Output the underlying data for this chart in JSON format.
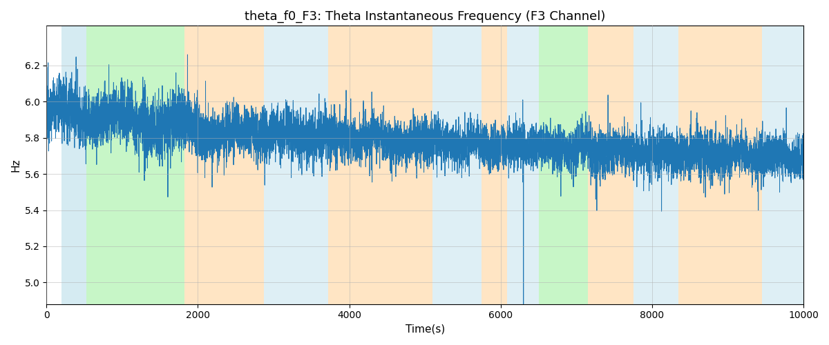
{
  "title": "theta_f0_F3: Theta Instantaneous Frequency (F3 Channel)",
  "xlabel": "Time(s)",
  "ylabel": "Hz",
  "xlim": [
    0,
    10000
  ],
  "ylim": [
    4.88,
    6.42
  ],
  "yticks": [
    5.0,
    5.2,
    5.4,
    5.6,
    5.8,
    6.0,
    6.2
  ],
  "xticks": [
    0,
    2000,
    4000,
    6000,
    8000,
    10000
  ],
  "line_color": "#1f77b4",
  "line_width": 0.7,
  "seed": 12345,
  "n_points": 10000,
  "colored_bands": [
    {
      "xmin": 200,
      "xmax": 530,
      "color": "#add8e6",
      "alpha": 0.5
    },
    {
      "xmin": 530,
      "xmax": 1820,
      "color": "#90ee90",
      "alpha": 0.5
    },
    {
      "xmin": 1820,
      "xmax": 2870,
      "color": "#ffd59e",
      "alpha": 0.6
    },
    {
      "xmin": 2870,
      "xmax": 3720,
      "color": "#add8e6",
      "alpha": 0.4
    },
    {
      "xmin": 3720,
      "xmax": 5100,
      "color": "#ffd59e",
      "alpha": 0.6
    },
    {
      "xmin": 5100,
      "xmax": 5750,
      "color": "#add8e6",
      "alpha": 0.4
    },
    {
      "xmin": 5750,
      "xmax": 6080,
      "color": "#ffd59e",
      "alpha": 0.6
    },
    {
      "xmin": 6080,
      "xmax": 6500,
      "color": "#add8e6",
      "alpha": 0.4
    },
    {
      "xmin": 6500,
      "xmax": 7150,
      "color": "#90ee90",
      "alpha": 0.5
    },
    {
      "xmin": 7150,
      "xmax": 7750,
      "color": "#ffd59e",
      "alpha": 0.6
    },
    {
      "xmin": 7750,
      "xmax": 8350,
      "color": "#add8e6",
      "alpha": 0.4
    },
    {
      "xmin": 8350,
      "xmax": 9450,
      "color": "#ffd59e",
      "alpha": 0.6
    },
    {
      "xmin": 9450,
      "xmax": 10000,
      "color": "#add8e6",
      "alpha": 0.4
    }
  ]
}
